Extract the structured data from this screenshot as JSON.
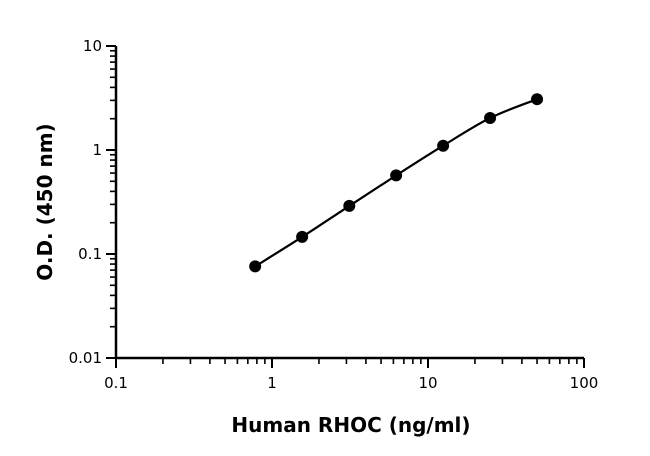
{
  "chart_data": {
    "type": "scatter",
    "xlabel": "Human RHOC (ng/ml)",
    "ylabel": "O.D. (450 nm)",
    "x_scale": "log",
    "y_scale": "log",
    "xlim": [
      0.1,
      100
    ],
    "ylim": [
      0.01,
      10
    ],
    "x_ticks": [
      "0.1",
      "1",
      "10",
      "100"
    ],
    "y_ticks": [
      "0.01",
      "0.1",
      "1",
      "10"
    ],
    "grid": false,
    "legend": "none",
    "series": [
      {
        "x": [
          0.78,
          1.56,
          3.13,
          6.25,
          12.5,
          25,
          50
        ],
        "y": [
          0.076,
          0.146,
          0.29,
          0.57,
          1.1,
          2.03,
          3.08
        ],
        "color": "#000000",
        "fit_curve": true
      }
    ]
  }
}
